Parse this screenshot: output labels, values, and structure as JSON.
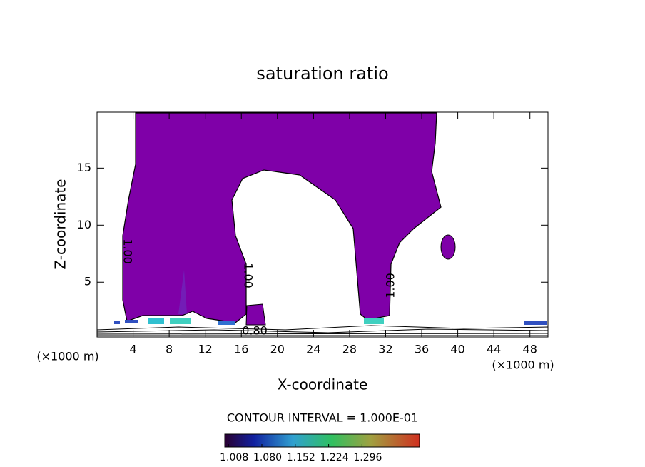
{
  "chart_data": {
    "type": "contour",
    "title": "saturation ratio",
    "x_label": "X-coordinate",
    "y_label": "Z-coordinate",
    "x_unit_left": "(×1000 m)",
    "x_unit_right": "(×1000 m)",
    "xlim": [
      0,
      50
    ],
    "ylim": [
      0.2,
      19.9
    ],
    "xticks": [
      4,
      8,
      12,
      16,
      20,
      24,
      28,
      32,
      36,
      40,
      44,
      48
    ],
    "yticks": [
      5,
      10,
      15
    ],
    "color": "#7f00a8",
    "contour_labels": [
      "1.00",
      "1.00",
      "1.00",
      "0.80"
    ],
    "colorbar": {
      "title": "CONTOUR INTERVAL = 1.000E-01",
      "clim": [
        1.0,
        1.42
      ],
      "ticks": [
        1.008,
        {
          "value": 1.08,
          "label": "1.080"
        },
        1.152,
        1.224,
        1.296
      ]
    }
  }
}
